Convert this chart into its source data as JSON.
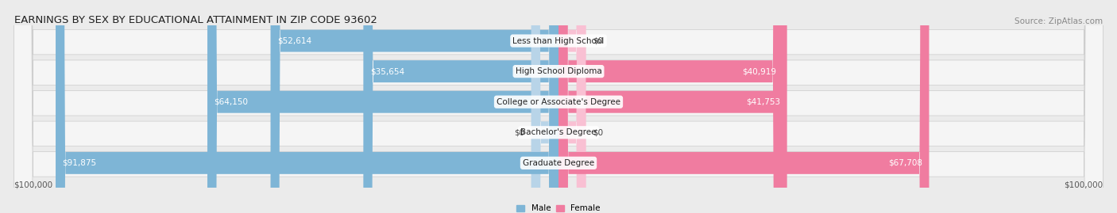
{
  "title": "EARNINGS BY SEX BY EDUCATIONAL ATTAINMENT IN ZIP CODE 93602",
  "source": "Source: ZipAtlas.com",
  "categories": [
    "Less than High School",
    "High School Diploma",
    "College or Associate's Degree",
    "Bachelor's Degree",
    "Graduate Degree"
  ],
  "male_values": [
    52614,
    35654,
    64150,
    0,
    91875
  ],
  "female_values": [
    0,
    40919,
    41753,
    0,
    67708
  ],
  "male_labels": [
    "$52,614",
    "$35,654",
    "$64,150",
    "$0",
    "$91,875"
  ],
  "female_labels": [
    "$0",
    "$40,919",
    "$41,753",
    "$0",
    "$67,708"
  ],
  "male_label_inside": [
    true,
    true,
    true,
    false,
    true
  ],
  "female_label_inside": [
    false,
    true,
    true,
    false,
    true
  ],
  "max_value": 100000,
  "male_color": "#7eb5d6",
  "female_color": "#f07ca0",
  "male_color_stub": "#b8d4e8",
  "female_color_stub": "#f9c0d3",
  "bg_color": "#ebebeb",
  "row_bg_color": "#f5f5f5",
  "axis_label_left": "$100,000",
  "axis_label_right": "$100,000",
  "legend_male": "Male",
  "legend_female": "Female",
  "title_fontsize": 9.5,
  "source_fontsize": 7.5,
  "label_fontsize": 7.5,
  "cat_fontsize": 7.5,
  "stub_value": 5000
}
